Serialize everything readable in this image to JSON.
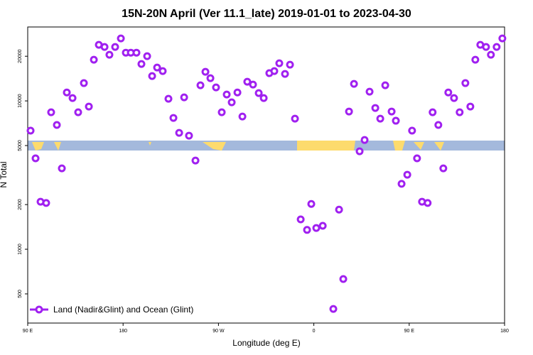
{
  "chart_data": {
    "type": "scatter",
    "title": "15N-20N April (Ver 11.1_late)   2019-01-01 to 2023-04-30",
    "x_label": "Longitude (deg E)",
    "y_label": "N Total",
    "log_y": true,
    "legend": "lower left",
    "xlim": [
      90,
      540
    ],
    "ylim": [
      318,
      31500
    ],
    "xticks": [
      {
        "value": 90,
        "label": "90 E"
      },
      180,
      {
        "value": 270,
        "label": "90 W"
      },
      {
        "value": 360,
        "label": "0"
      },
      {
        "value": 450,
        "label": "90 E"
      },
      {
        "value": 540,
        "label": "180"
      }
    ],
    "yticks": [
      500,
      1000,
      2000,
      5000,
      10000,
      20000
    ],
    "series": [
      {
        "name": "Land (Nadir&Glint) and Ocean (Glint)",
        "color": "#a020f0",
        "x": [
          92.7,
          97.4,
          102.1,
          107.4,
          112.1,
          117.5,
          122.2,
          126.9,
          132.3,
          137.6,
          143,
          147.7,
          152.4,
          157.1,
          162.5,
          167.1,
          172.5,
          177.9,
          182.6,
          187.3,
          192.6,
          197.3,
          202.7,
          207.4,
          212.1,
          217.4,
          222.8,
          227.5,
          232.9,
          237.6,
          242.2,
          248.3,
          253,
          257.7,
          262.4,
          267.7,
          273.1,
          277.8,
          282.5,
          287.9,
          292.6,
          297.2,
          302.6,
          308,
          312.7,
          318,
          322.7,
          327.4,
          332.8,
          337.5,
          342.2,
          347.6,
          353.6,
          357.6,
          362.3,
          368.4,
          378.4,
          383.8,
          387.8,
          393.2,
          397.9,
          403.2,
          407.9,
          412.6,
          418,
          422.7,
          427.4,
          433.4,
          437.4,
          442.8,
          448.2,
          452.7,
          457.4,
          462.1,
          467.4,
          472.1,
          477.5,
          482.2,
          486.9,
          492.3,
          497.6,
          503,
          507.7,
          512.4,
          517.1,
          522.5,
          527.1,
          532.5,
          537.9
        ],
        "values": [
          6300,
          4100,
          2090,
          2050,
          8380,
          6880,
          3510,
          11400,
          10450,
          8380,
          13180,
          9160,
          18950,
          23870,
          23100,
          20460,
          23100,
          26370,
          21140,
          21140,
          21140,
          17740,
          20010,
          14700,
          16790,
          15890,
          10330,
          7680,
          6090,
          10570,
          5830,
          3960,
          12740,
          15710,
          14230,
          12330,
          8380,
          11040,
          9780,
          11400,
          7850,
          13460,
          12880,
          11290,
          10450,
          15380,
          15890,
          17930,
          15200,
          17540,
          7590,
          1590,
          1350,
          2020,
          1390,
          1440,
          396,
          1850,
          630,
          8480,
          13020,
          4570,
          5450,
          11540,
          8960,
          7590,
          12740,
          8480,
          7350,
          2760,
          3180,
          6300,
          4100,
          2090,
          2050,
          8380,
          6880,
          3510,
          11400,
          10450,
          8380,
          13180,
          9160,
          18950,
          23870,
          23100,
          20460,
          23100,
          26370
        ]
      }
    ]
  }
}
